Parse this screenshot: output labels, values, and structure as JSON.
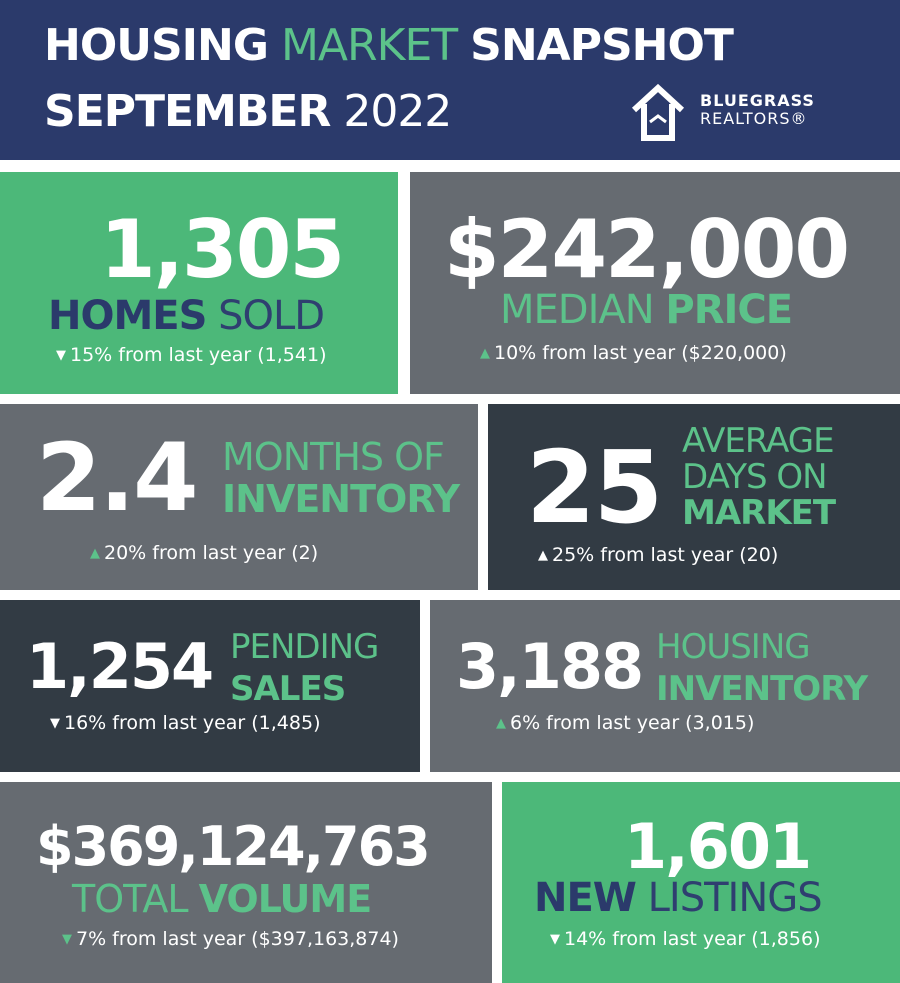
{
  "header": {
    "title_word1": "HOUSING",
    "title_word2": "MARKET",
    "title_word3": "SNAPSHOT",
    "month": "SEPTEMBER",
    "year": "2022",
    "logo_line1": "BLUEGRASS",
    "logo_line2": "REALTORS®"
  },
  "homes_sold": {
    "value": "1,305",
    "label_bold": "HOMES",
    "label_light": "SOLD",
    "direction": "down",
    "change": "15% from last year (1,541)"
  },
  "median_price": {
    "value": "$242,000",
    "label_light": "MEDIAN",
    "label_bold": "PRICE",
    "direction": "up",
    "change": "10% from last year ($220,000)"
  },
  "months_inventory": {
    "value": "2.4",
    "label_light": "MONTHS OF",
    "label_bold": "INVENTORY",
    "direction": "up",
    "change": "20% from last year (2)"
  },
  "days_on_market": {
    "value": "25",
    "label_light1": "AVERAGE",
    "label_light2": "DAYS ON",
    "label_bold": "MARKET",
    "direction": "up",
    "change": "25% from last year (20)"
  },
  "pending_sales": {
    "value": "1,254",
    "label_light": "PENDING",
    "label_bold": "SALES",
    "direction": "down",
    "change": "16% from last year (1,485)"
  },
  "housing_inventory": {
    "value": "3,188",
    "label_light": "HOUSING",
    "label_bold": "INVENTORY",
    "direction": "up",
    "change": "6% from last year (3,015)"
  },
  "total_volume": {
    "value": "$369,124,763",
    "label_light": "TOTAL",
    "label_bold": "VOLUME",
    "direction": "down",
    "change": "7% from last year ($397,163,874)"
  },
  "new_listings": {
    "value": "1,601",
    "label_bold": "NEW",
    "label_light": "LISTINGS",
    "direction": "down",
    "change": "14% from last year (1,856)"
  },
  "colors": {
    "navy": "#2b3a6b",
    "green": "#4cb879",
    "gray": "#666b71",
    "dark": "#323b44",
    "accent_green_text": "#5cc28a"
  },
  "icons": {
    "up": "chevron-up-icon",
    "down": "chevron-down-icon",
    "logo": "house-logo-icon"
  }
}
